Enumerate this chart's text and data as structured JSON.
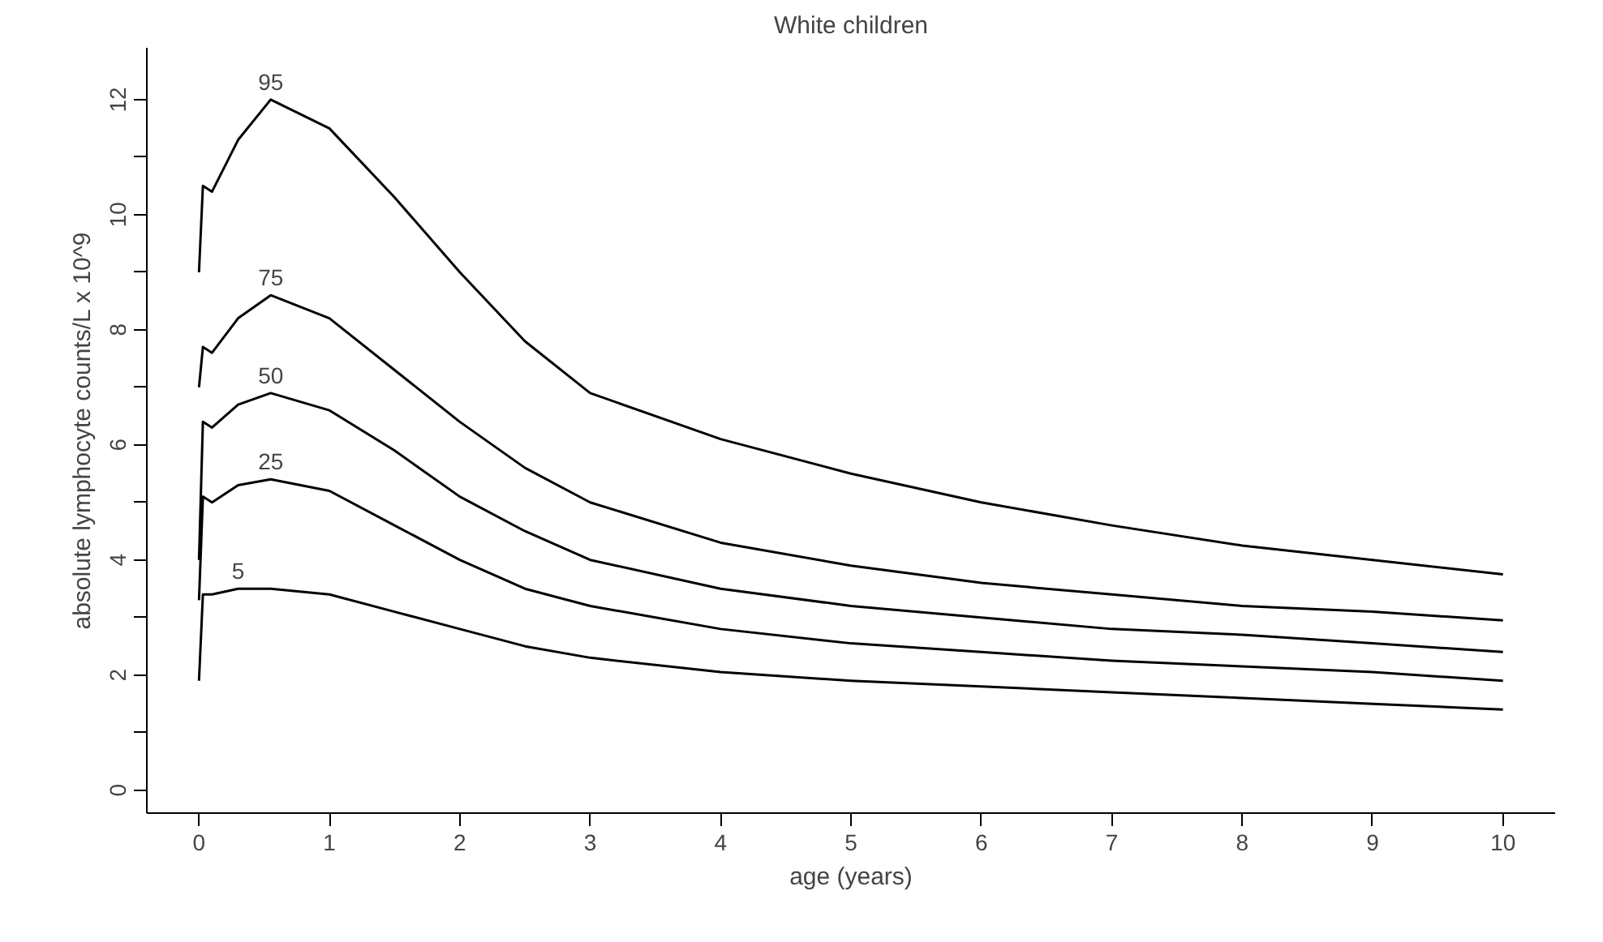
{
  "chart_data": {
    "type": "line",
    "title": "White children",
    "xlabel": "age (years)",
    "ylabel": "absolute lymphocyte counts/L x 10^9",
    "xlim": [
      -0.4,
      10.4
    ],
    "ylim": [
      -0.4,
      12.9
    ],
    "xticks": [
      0,
      1,
      2,
      3,
      4,
      5,
      6,
      7,
      8,
      9,
      10
    ],
    "yticks": [
      0,
      {
        "value": 1,
        "label": null
      },
      2,
      {
        "value": 3,
        "label": null
      },
      4,
      {
        "value": 5,
        "label": null
      },
      6,
      {
        "value": 7,
        "label": null
      },
      8,
      {
        "value": 9,
        "label": null
      },
      10,
      {
        "value": 11,
        "label": null
      },
      12
    ],
    "grid": false,
    "marker": "none",
    "line_style": "solid",
    "x": [
      0,
      0.03,
      0.1,
      0.3,
      0.55,
      1,
      1.5,
      2,
      2.5,
      3,
      4,
      5,
      6,
      7,
      8,
      9,
      10
    ],
    "series": [
      {
        "name": "95",
        "color": "#000000",
        "values": [
          9.0,
          10.5,
          10.4,
          11.3,
          12.0,
          11.5,
          10.3,
          9.0,
          7.8,
          6.9,
          6.1,
          5.5,
          5.0,
          4.6,
          4.25,
          4.0,
          3.75
        ]
      },
      {
        "name": "75",
        "color": "#000000",
        "values": [
          7.0,
          7.7,
          7.6,
          8.2,
          8.6,
          8.2,
          7.3,
          6.4,
          5.6,
          5.0,
          4.3,
          3.9,
          3.6,
          3.4,
          3.2,
          3.1,
          2.95
        ]
      },
      {
        "name": "50",
        "color": "#000000",
        "values": [
          4.0,
          6.4,
          6.3,
          6.7,
          6.9,
          6.6,
          5.9,
          5.1,
          4.5,
          4.0,
          3.5,
          3.2,
          3.0,
          2.8,
          2.7,
          2.55,
          2.4
        ]
      },
      {
        "name": "25",
        "color": "#000000",
        "values": [
          3.3,
          5.1,
          5.0,
          5.3,
          5.4,
          5.2,
          4.6,
          4.0,
          3.5,
          3.2,
          2.8,
          2.55,
          2.4,
          2.25,
          2.15,
          2.05,
          1.9
        ]
      },
      {
        "name": "5",
        "color": "#000000",
        "values": [
          1.9,
          3.4,
          3.4,
          3.5,
          3.5,
          3.4,
          3.1,
          2.8,
          2.5,
          2.3,
          2.05,
          1.9,
          1.8,
          1.7,
          1.6,
          1.5,
          1.4
        ]
      }
    ]
  }
}
